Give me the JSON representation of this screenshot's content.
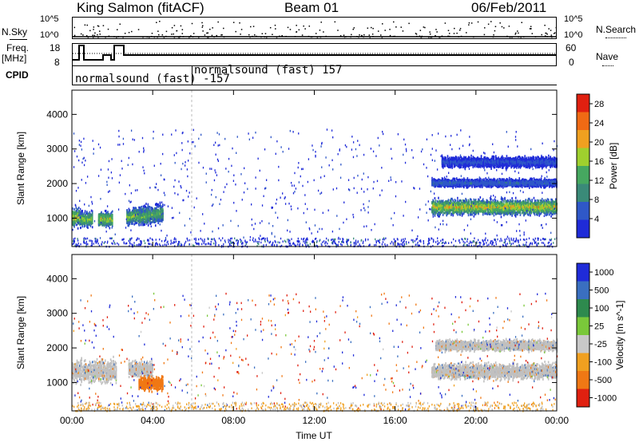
{
  "header": {
    "station": "King Salmon (fitACF)",
    "beam": "Beam 01",
    "date": "06/Feb/2011"
  },
  "top_panels": {
    "nsky_label": "N.Sky",
    "nsearch_label": "N.Search",
    "nsky_ticks": [
      "10^5",
      "10^0"
    ],
    "nsearch_ticks": [
      "10^5",
      "10^0"
    ],
    "freq_label": "Freq.",
    "freq_unit": "[MHz]",
    "nave_label": "Nave",
    "freq_ticks": [
      "18",
      "8"
    ],
    "nave_ticks": [
      "60",
      "0"
    ],
    "cpid_label": "CPID",
    "cpid_segments": [
      {
        "label": "normalsound (fast) -157",
        "start_hour": 0.0
      },
      {
        "label": "normalsound (fast) 157",
        "start_hour": 6.0
      }
    ]
  },
  "colors": {
    "frame": "#000000",
    "power_scale": [
      "#1f2bd8",
      "#2f58c8",
      "#3a8a78",
      "#46a860",
      "#9fd02e",
      "#f0a020",
      "#f06a14",
      "#e02010"
    ],
    "velocity_scale": [
      "#1f2bd8",
      "#3a6fc0",
      "#2e8a4e",
      "#7ac83a",
      "#c8c8c8",
      "#f0a020",
      "#f07814",
      "#e02010"
    ],
    "ground_scatter": "#c0c0c0"
  },
  "chart_data": [
    {
      "type": "heatmap",
      "title": "Power",
      "xlabel": "",
      "ylabel": "Slant Range [km]",
      "x_ticks": [
        "00:00",
        "04:00",
        "08:00",
        "12:00",
        "16:00",
        "20:00",
        "00:00"
      ],
      "xlim_hours": [
        0,
        24
      ],
      "y_ticks": [
        1000,
        2000,
        3000,
        4000
      ],
      "ylim": [
        180,
        4700
      ],
      "colorbar": {
        "label": "Power [dB]",
        "ticks": [
          4,
          8,
          12,
          16,
          20,
          24,
          28
        ],
        "range": [
          0,
          30
        ]
      },
      "echo_regions": [
        {
          "x_start": 0.0,
          "x_end": 0.4,
          "range_center": 1050,
          "range_halfwidth": 350,
          "peak_db": 22
        },
        {
          "x_start": 0.4,
          "x_end": 1.0,
          "range_center": 1000,
          "range_halfwidth": 300,
          "peak_db": 18
        },
        {
          "x_start": 1.3,
          "x_end": 2.0,
          "range_center": 1000,
          "range_halfwidth": 300,
          "peak_db": 20
        },
        {
          "x_start": 2.7,
          "x_end": 3.8,
          "range_center": 1050,
          "range_halfwidth": 300,
          "peak_db": 18
        },
        {
          "x_start": 3.3,
          "x_end": 4.5,
          "range_center": 1050,
          "range_halfwidth": 350,
          "peak_db": 16
        },
        {
          "x_start": 17.8,
          "x_end": 24.0,
          "range_center": 1350,
          "range_halfwidth": 300,
          "peak_db": 22
        },
        {
          "x_start": 17.8,
          "x_end": 24.0,
          "range_center": 2050,
          "range_halfwidth": 150,
          "peak_db": 8
        },
        {
          "x_start": 18.3,
          "x_end": 24.0,
          "range_center": 2650,
          "range_halfwidth": 200,
          "peak_db": 6
        }
      ]
    },
    {
      "type": "heatmap",
      "title": "Velocity",
      "xlabel": "Time UT",
      "ylabel": "Slant Range [km]",
      "x_ticks": [
        "00:00",
        "04:00",
        "08:00",
        "12:00",
        "16:00",
        "20:00",
        "00:00"
      ],
      "xlim_hours": [
        0,
        24
      ],
      "y_ticks": [
        1000,
        2000,
        3000,
        4000
      ],
      "ylim": [
        180,
        4700
      ],
      "colorbar": {
        "label": "Velocity [m s^-1]",
        "ticks": [
          "1000",
          "500",
          "100",
          "25",
          "-25",
          "-100",
          "-500",
          "-1000"
        ]
      },
      "echo_regions": [
        {
          "x_start": 0.0,
          "x_end": 2.2,
          "range_center": 1350,
          "range_halfwidth": 450,
          "velocity": 0,
          "ground_scatter": true
        },
        {
          "x_start": 2.8,
          "x_end": 4.0,
          "range_center": 1400,
          "range_halfwidth": 300,
          "velocity": 0,
          "ground_scatter": true
        },
        {
          "x_start": 3.3,
          "x_end": 4.5,
          "range_center": 1000,
          "range_halfwidth": 250,
          "velocity": -400,
          "ground_scatter": false
        },
        {
          "x_start": 17.8,
          "x_end": 24.0,
          "range_center": 1350,
          "range_halfwidth": 300,
          "velocity": 0,
          "ground_scatter": true
        },
        {
          "x_start": 18.0,
          "x_end": 24.0,
          "range_center": 2100,
          "range_halfwidth": 200,
          "velocity": 0,
          "ground_scatter": true
        }
      ]
    }
  ]
}
